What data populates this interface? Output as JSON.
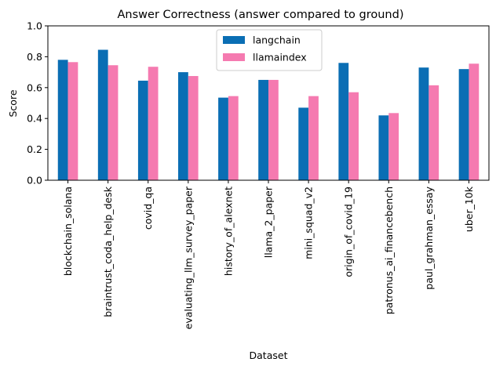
{
  "chart_data": {
    "type": "bar",
    "title": "Answer Correctness (answer compared to ground)",
    "xlabel": "Dataset",
    "ylabel": "Score",
    "ylim": [
      0,
      1.0
    ],
    "yticks": [
      "0.0",
      "0.2",
      "0.4",
      "0.6",
      "0.8",
      "1.0"
    ],
    "grid": false,
    "legend_position": "top-center",
    "categories": [
      "blockchain_solana",
      "braintrust_coda_help_desk",
      "covid_qa",
      "evaluating_llm_survey_paper",
      "history_of_alexnet",
      "llama_2_paper",
      "mini_squad_v2",
      "origin_of_covid_19",
      "patronus_ai_financebench",
      "paul_grahman_essay",
      "uber_10k"
    ],
    "series": [
      {
        "name": "langchain",
        "color": "#0a6eb4",
        "values": [
          0.78,
          0.845,
          0.645,
          0.7,
          0.535,
          0.65,
          0.47,
          0.76,
          0.42,
          0.73,
          0.72
        ]
      },
      {
        "name": "llamaindex",
        "color": "#f57ab0",
        "values": [
          0.765,
          0.745,
          0.735,
          0.675,
          0.545,
          0.65,
          0.545,
          0.57,
          0.435,
          0.615,
          0.755
        ]
      }
    ]
  }
}
